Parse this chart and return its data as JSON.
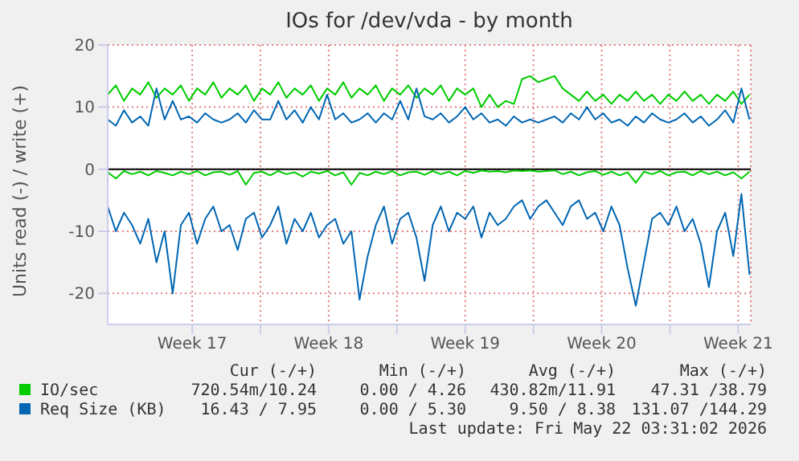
{
  "chart_data": {
    "type": "line",
    "title": "IOs for /dev/vda - by month",
    "ylabel": "Units read (-) / write (+)",
    "x": [
      "2026-04-19T04:00",
      "2026-04-19T14:00",
      "2026-04-20T00:00",
      "2026-04-20T10:00",
      "2026-04-20T20:00",
      "2026-04-21T06:00",
      "2026-04-21T16:00",
      "2026-04-22T02:00",
      "2026-04-22T12:00",
      "2026-04-22T22:00",
      "2026-04-23T08:00",
      "2026-04-23T18:00",
      "2026-04-24T04:00",
      "2026-04-24T14:00",
      "2026-04-25T00:00",
      "2026-04-25T10:00",
      "2026-04-25T20:00",
      "2026-04-26T06:00",
      "2026-04-26T16:00",
      "2026-04-27T02:00",
      "2026-04-27T12:00",
      "2026-04-27T22:00",
      "2026-04-28T08:00",
      "2026-04-28T18:00",
      "2026-04-29T04:00",
      "2026-04-29T14:00",
      "2026-04-30T00:00",
      "2026-04-30T10:00",
      "2026-04-30T20:00",
      "2026-05-01T06:00",
      "2026-05-01T16:00",
      "2026-05-02T02:00",
      "2026-05-02T12:00",
      "2026-05-02T22:00",
      "2026-05-03T08:00",
      "2026-05-03T18:00",
      "2026-05-04T04:00",
      "2026-05-04T14:00",
      "2026-05-05T00:00",
      "2026-05-05T10:00",
      "2026-05-05T20:00",
      "2026-05-06T06:00",
      "2026-05-06T16:00",
      "2026-05-07T02:00",
      "2026-05-07T12:00",
      "2026-05-07T22:00",
      "2026-05-08T08:00",
      "2026-05-08T18:00",
      "2026-05-09T04:00",
      "2026-05-09T14:00",
      "2026-05-10T00:00",
      "2026-05-10T10:00",
      "2026-05-10T20:00",
      "2026-05-11T06:00",
      "2026-05-11T16:00",
      "2026-05-12T02:00",
      "2026-05-12T12:00",
      "2026-05-12T22:00",
      "2026-05-13T08:00",
      "2026-05-13T18:00",
      "2026-05-14T04:00",
      "2026-05-14T14:00",
      "2026-05-15T00:00",
      "2026-05-15T10:00",
      "2026-05-15T20:00",
      "2026-05-16T06:00",
      "2026-05-16T16:00",
      "2026-05-17T02:00",
      "2026-05-17T12:00",
      "2026-05-17T22:00",
      "2026-05-18T08:00",
      "2026-05-18T18:00",
      "2026-05-19T04:00",
      "2026-05-19T14:00",
      "2026-05-20T00:00",
      "2026-05-20T10:00",
      "2026-05-20T20:00",
      "2026-05-21T06:00",
      "2026-05-21T16:00",
      "2026-05-22T02:00"
    ],
    "series": [
      {
        "name": "IO/sec",
        "color": "#00cc00",
        "values": [
          12,
          13.5,
          11,
          13,
          12,
          14,
          11.5,
          13,
          12,
          13.5,
          11,
          13,
          12,
          14,
          11.5,
          13,
          12,
          13.5,
          11,
          13,
          12,
          14,
          11.5,
          13,
          12,
          13.5,
          11,
          13,
          12,
          14,
          11.5,
          13,
          12,
          13.5,
          11,
          13,
          12,
          13.5,
          11.5,
          13,
          12,
          13.5,
          11,
          13,
          12,
          13,
          10,
          12,
          10,
          11,
          10.5,
          14.5,
          15,
          14,
          14.5,
          15,
          13,
          12,
          11,
          12.5,
          11,
          12,
          10.5,
          12,
          11,
          12.5,
          11,
          12,
          10.5,
          12,
          11,
          12.5,
          11,
          12,
          10.5,
          12,
          11,
          12.5,
          10.5,
          12
        ]
      },
      {
        "color": "#00cc00",
        "values": [
          -0.5,
          -1.5,
          -0.3,
          -0.8,
          -0.4,
          -1,
          -0.3,
          -0.6,
          -1,
          -0.4,
          -0.8,
          -0.3,
          -1,
          -0.5,
          -0.4,
          -0.9,
          -0.3,
          -2.5,
          -0.6,
          -0.4,
          -1,
          -0.3,
          -0.8,
          -0.5,
          -1.2,
          -0.4,
          -0.7,
          -0.3,
          -1,
          -0.5,
          -2.5,
          -0.6,
          -1,
          -0.4,
          -0.8,
          -0.3,
          -1,
          -0.5,
          -0.4,
          -0.9,
          -0.3,
          -0.8,
          -0.4,
          -1,
          -0.3,
          -0.6,
          -0.2,
          -0.4,
          -0.3,
          -0.5,
          -0.2,
          -0.3,
          -0.2,
          -0.4,
          -0.3,
          -0.2,
          -0.8,
          -0.4,
          -1,
          -0.5,
          -0.3,
          -0.9,
          -0.4,
          -1,
          -0.5,
          -2.2,
          -0.4,
          -0.8,
          -0.3,
          -1,
          -0.5,
          -0.4,
          -1,
          -0.3,
          -0.8,
          -0.4,
          -1,
          -0.5,
          -1.5,
          -0.4
        ]
      },
      {
        "name": "Req Size (KB)",
        "color": "#0066b3",
        "values": [
          8,
          7,
          9.5,
          7.5,
          8.5,
          7,
          13,
          8,
          11,
          8,
          8.5,
          7.5,
          9,
          8,
          7.5,
          8,
          9,
          7.5,
          9.5,
          8,
          8,
          11,
          8,
          9.5,
          7.5,
          10,
          8,
          12,
          8,
          9,
          7.5,
          8,
          9,
          7.5,
          9,
          8,
          11,
          8,
          13,
          8.5,
          8,
          9,
          7.5,
          8.5,
          10,
          8,
          9,
          7.5,
          8,
          7,
          8.5,
          7.5,
          8,
          7.5,
          8,
          8.5,
          7.5,
          9,
          8,
          10,
          8,
          9,
          7.5,
          8,
          7,
          8.5,
          7.5,
          9,
          8,
          7.5,
          8,
          9,
          7.5,
          8.5,
          7,
          8,
          9.5,
          7.5,
          13,
          8
        ]
      },
      {
        "color": "#0066b3",
        "values": [
          -6,
          -10,
          -7,
          -9,
          -12,
          -8,
          -15,
          -10,
          -20,
          -9,
          -7,
          -12,
          -8,
          -6,
          -10,
          -9,
          -13,
          -8,
          -7,
          -11,
          -9,
          -6,
          -12,
          -8,
          -10,
          -7,
          -11,
          -9,
          -8,
          -12,
          -10,
          -21,
          -14,
          -9,
          -6,
          -12,
          -8,
          -7,
          -11,
          -18,
          -9,
          -6,
          -10,
          -7,
          -8,
          -6,
          -11,
          -7,
          -9,
          -8,
          -6,
          -5,
          -8,
          -6,
          -5,
          -7,
          -9,
          -6,
          -5,
          -8,
          -7,
          -10,
          -6,
          -9,
          -16,
          -22,
          -15,
          -8,
          -7,
          -9,
          -6,
          -10,
          -8,
          -12,
          -19,
          -10,
          -7,
          -14,
          -4,
          -17
        ]
      }
    ],
    "xlim": [
      "2026-04-19T04:00",
      "2026-05-22T03:31"
    ],
    "xticks": [
      {
        "value": "2026-04-27",
        "label": null
      },
      {
        "value": "2026-05-04",
        "label": null
      },
      {
        "value": "2026-05-11",
        "label": null
      },
      {
        "value": "2026-05-18",
        "label": null
      },
      {
        "value": "2026-04-23T12:00",
        "label": "Week 17"
      },
      {
        "value": "2026-04-30T12:00",
        "label": "Week 18"
      },
      {
        "value": "2026-05-07T12:00",
        "label": "Week 19"
      },
      {
        "value": "2026-05-14T12:00",
        "label": "Week 20"
      },
      {
        "value": "2026-05-21T12:00",
        "label": "Week 21"
      }
    ],
    "ylim": [
      -25,
      20
    ],
    "yticks": [
      -20,
      -10,
      0,
      10,
      20
    ],
    "ref_lines": [
      {
        "axis": "y",
        "value": 0,
        "color": "#000000"
      }
    ],
    "grid": true,
    "legend": "bottom",
    "annotations": [
      "Cur (-/+)",
      "Min (-/+)",
      "Avg (-/+)",
      "Max (-/+)",
      "720.54m/10.24",
      "0.00 / 4.26",
      "430.82m/11.91",
      "47.31 /38.79",
      "16.43 / 7.95",
      "0.00 / 5.30",
      "9.50 / 8.38",
      "131.07 /144.29",
      "Last update: Fri May 22 03:31:02 2026"
    ]
  }
}
